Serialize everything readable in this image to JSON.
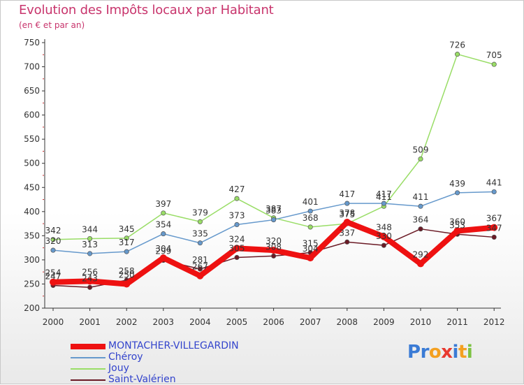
{
  "title": "Evolution des Impôts locaux par Habitant",
  "subtitle": "(en € et par an)",
  "logo": {
    "text": "Proxiti",
    "letters": [
      "P",
      "r",
      "o",
      "x",
      "i",
      "t",
      "i"
    ],
    "colors": [
      "#3a7bd5",
      "#3a7bd5",
      "#f4a020",
      "#e8392f",
      "#3a7bd5",
      "#f4a020",
      "#7cc242"
    ]
  },
  "chart_data": {
    "type": "line",
    "title": "Evolution des Impôts locaux par Habitant",
    "subtitle": "(en € et par an)",
    "xlabel": "",
    "ylabel": "",
    "categories": [
      "2000",
      "2001",
      "2002",
      "2003",
      "2004",
      "2005",
      "2006",
      "2007",
      "2008",
      "2009",
      "2010",
      "2011",
      "2012"
    ],
    "yticks": [
      200,
      250,
      300,
      350,
      400,
      450,
      500,
      550,
      600,
      650,
      700,
      750
    ],
    "ylim": [
      200,
      750
    ],
    "grid": false,
    "legend_position": "bottom-left",
    "series": [
      {
        "name": "Saint-Valérien",
        "color": "#6b1a25",
        "values": [
          247,
          243,
          258,
          299,
          281,
          305,
          308,
          315,
          337,
          330,
          364,
          353,
          347
        ],
        "labels": [
          "247",
          "243",
          "258",
          "299",
          "281",
          "305",
          "308",
          "315",
          "337",
          "330",
          "364",
          "353",
          "347"
        ]
      },
      {
        "name": "Jouy",
        "color": "#99dd66",
        "values": [
          342,
          344,
          345,
          397,
          379,
          427,
          387,
          368,
          375,
          411,
          509,
          726,
          705
        ],
        "labels": [
          "342",
          "344",
          "345",
          "397",
          "379",
          "427",
          "387",
          "368",
          "375",
          "411",
          "509",
          "726",
          "705"
        ]
      },
      {
        "name": "Chéroy",
        "color": "#6699cc",
        "values": [
          320,
          313,
          317,
          354,
          335,
          373,
          383,
          401,
          417,
          417,
          411,
          439,
          441
        ],
        "labels": [
          "320",
          "313",
          "317",
          "354",
          "335",
          "373",
          "383",
          "401",
          "417",
          "417",
          "411",
          "439",
          "441"
        ]
      },
      {
        "name": "MONTACHER-VILLEGARDIN",
        "color": "#ee1111",
        "values": [
          254,
          256,
          250,
          304,
          267,
          324,
          320,
          304,
          378,
          348,
          292,
          360,
          367
        ],
        "labels": [
          "254",
          "256",
          "250",
          "304",
          "267",
          "324",
          "320",
          "304",
          "378",
          "348",
          "292",
          "360",
          "367"
        ]
      }
    ]
  }
}
